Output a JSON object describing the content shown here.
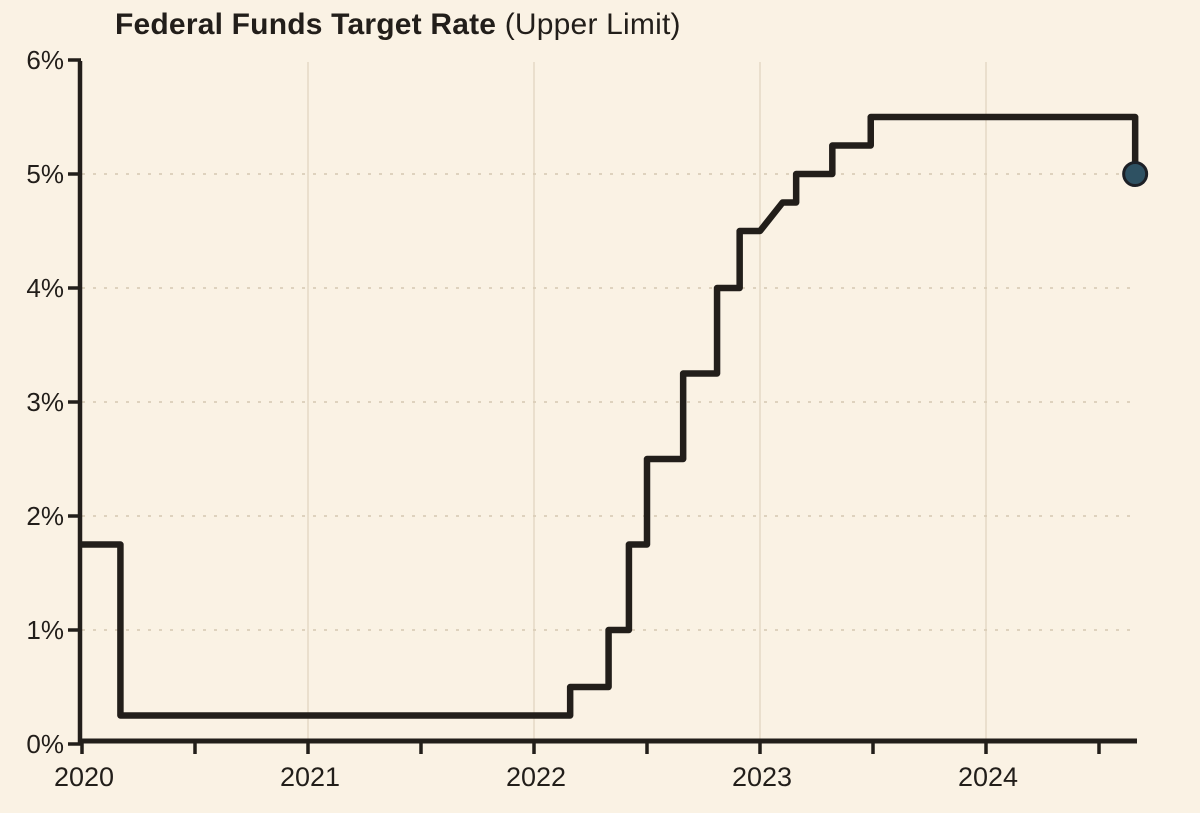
{
  "title": {
    "main": "Federal Funds Target Rate",
    "suffix": "(Upper Limit)"
  },
  "chart_data": {
    "type": "line",
    "subtype": "step-after",
    "title": "Federal Funds Target Rate (Upper Limit)",
    "xlabel": "",
    "ylabel": "",
    "x_axis": {
      "min": 2020,
      "max": 2024.9,
      "major_ticks": [
        2020,
        2021,
        2022,
        2023,
        2024
      ],
      "major_tick_labels": [
        "2020",
        "2021",
        "2022",
        "2023",
        "2024"
      ],
      "minor_ticks": [
        2020.5,
        2021.5,
        2022.5,
        2023.5,
        2024.5
      ]
    },
    "y_axis": {
      "min": 0,
      "max": 6,
      "ticks": [
        0,
        1,
        2,
        3,
        4,
        5,
        6
      ],
      "tick_labels": [
        "0%",
        "1%",
        "2%",
        "3%",
        "4%",
        "5%",
        "6%"
      ]
    },
    "grid": {
      "horizontal_at": [
        1,
        2,
        3,
        4,
        5
      ],
      "vertical_at": [
        2021,
        2022,
        2023,
        2024
      ],
      "style": "dotted"
    },
    "legend": "none",
    "series": [
      {
        "name": "Federal Funds Target Rate (Upper Limit)",
        "unit": "%",
        "points_note": "t = decimal year of rate change read from axis, v = new upper-limit rate in percent; step-after line",
        "points": [
          {
            "t": 2020.0,
            "v": 1.75
          },
          {
            "t": 2020.17,
            "v": 0.25
          },
          {
            "t": 2022.16,
            "v": 0.5
          },
          {
            "t": 2022.33,
            "v": 1.0
          },
          {
            "t": 2022.42,
            "v": 1.75
          },
          {
            "t": 2022.5,
            "v": 2.5
          },
          {
            "t": 2022.66,
            "v": 3.25
          },
          {
            "t": 2022.81,
            "v": 4.0
          },
          {
            "t": 2022.91,
            "v": 4.5
          },
          {
            "t": 2023.1,
            "v": 4.75,
            "join": "slant",
            "slant_from_t": 2023.0
          },
          {
            "t": 2023.16,
            "v": 5.0
          },
          {
            "t": 2023.32,
            "v": 5.25
          },
          {
            "t": 2023.49,
            "v": 5.5
          },
          {
            "t": 2024.66,
            "v": 5.0
          }
        ]
      }
    ],
    "end_marker": {
      "t": 2024.66,
      "v": 5.0
    },
    "colors": {
      "background": "#faf2e4",
      "line": "#221e1a",
      "axis": "#221e1a",
      "text": "#221e1a",
      "grid_horizontal": "#dccfba",
      "grid_vertical": "#eadfcd",
      "marker_fill": "#2e5162",
      "marker_stroke": "#1c2026"
    }
  }
}
